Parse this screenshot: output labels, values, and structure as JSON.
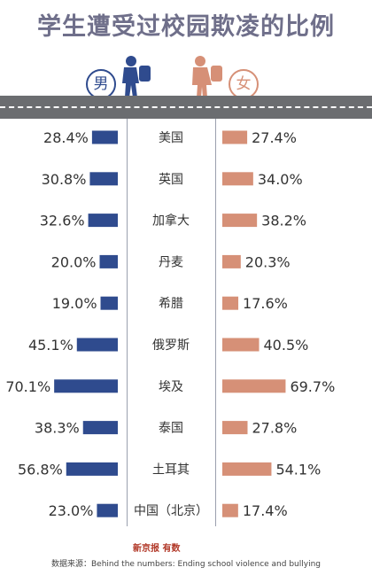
{
  "title": "学生遭受过校园欺凌的比例",
  "legend": {
    "male": {
      "label": "男",
      "color": "#2f4b8e"
    },
    "female": {
      "label": "女",
      "color": "#d69077"
    }
  },
  "source": "数据来源：Behind the numbers: Ending school violence and bullying",
  "logo": {
    "part1": "新京报",
    "part2": "有数"
  },
  "chart_data": {
    "type": "bar",
    "title": "学生遭受过校园欺凌的比例",
    "categories": [
      "美国",
      "英国",
      "加拿大",
      "丹麦",
      "希腊",
      "俄罗斯",
      "埃及",
      "泰国",
      "土耳其",
      "中国（北京）"
    ],
    "series": [
      {
        "name": "男",
        "color": "#2f4b8e",
        "values": [
          28.4,
          30.8,
          32.6,
          20.0,
          19.0,
          45.1,
          70.1,
          38.3,
          56.8,
          23.0
        ],
        "labels": [
          "28.4%",
          "30.8%",
          "32.6%",
          "20.0%",
          "19.0%",
          "45.1%",
          "70.1%",
          "38.3%",
          "56.8%",
          "23.0%"
        ]
      },
      {
        "name": "女",
        "color": "#d69077",
        "values": [
          27.4,
          34.0,
          38.2,
          20.3,
          17.6,
          40.5,
          69.7,
          27.8,
          54.1,
          17.4
        ],
        "labels": [
          "27.4%",
          "34.0%",
          "38.2%",
          "20.3%",
          "17.6%",
          "40.5%",
          "69.7%",
          "27.8%",
          "54.1%",
          "17.4%"
        ]
      }
    ]
  }
}
